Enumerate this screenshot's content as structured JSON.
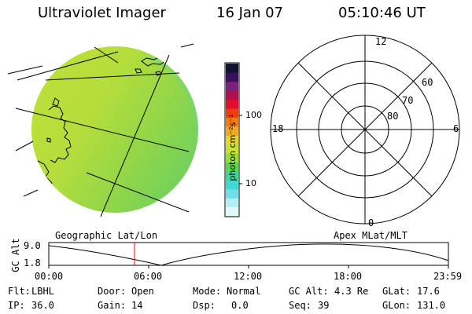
{
  "header": {
    "instrument": "Ultraviolet Imager",
    "date": "16 Jan 07",
    "time": "05:10:46 UT"
  },
  "colorbar": {
    "unit": "photon cm⁻²s⁻¹",
    "ticks": [
      "100",
      "10"
    ],
    "colors": [
      "#111133",
      "#3a0f5e",
      "#7a1f7a",
      "#b01050",
      "#e0102a",
      "#f03a10",
      "#f07a10",
      "#f0a820",
      "#e8d430",
      "#c8e030",
      "#98e030",
      "#58d840",
      "#38d898",
      "#40d8d0",
      "#70e0e8",
      "#b0f0f0",
      "#e0f8f8"
    ]
  },
  "image_label": "Geographic Lat/Lon",
  "polar": {
    "label": "Apex MLat/MLT",
    "mlt": {
      "top": "12",
      "left": "18",
      "right": "6",
      "bottom": "0"
    },
    "mlat": [
      "60",
      "70",
      "80"
    ]
  },
  "altitude_plot": {
    "ylabel": "GC Alt",
    "yticks": [
      "9.0",
      "1.8"
    ],
    "xticks": [
      "00:00",
      "06:00",
      "12:00",
      "18:00",
      "23:59"
    ],
    "current_time_marker_color": "#ff0000"
  },
  "status": {
    "row1": [
      {
        "label": "Flt:",
        "value": "LBHL"
      },
      {
        "label": "Door:",
        "value": "Open"
      },
      {
        "label": "Mode:",
        "value": "Normal"
      },
      {
        "label": "GC Alt:",
        "value": "4.3 Re"
      },
      {
        "label": "GLat:",
        "value": "17.6"
      }
    ],
    "row2": [
      {
        "label": "IP:",
        "value": "36.0"
      },
      {
        "label": "Gain:",
        "value": "14"
      },
      {
        "label": "Dsp:",
        "value": "0.0"
      },
      {
        "label": "Seq:",
        "value": "39"
      },
      {
        "label": "GLon:",
        "value": "131.0"
      }
    ]
  }
}
